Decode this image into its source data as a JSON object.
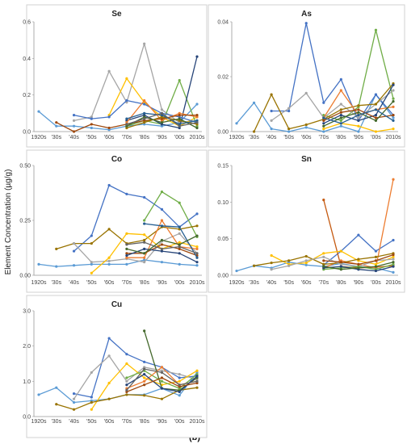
{
  "figure": {
    "ylabel": "Element Concentration (µg/g)",
    "label": "(b)"
  },
  "chart_data": [
    {
      "type": "line",
      "title": "Se",
      "categories": [
        "1920s",
        "'30s",
        "'40s",
        "'50s",
        "'60s",
        "'70s",
        "'80s",
        "'90s",
        "'00s",
        "2010s"
      ],
      "ylim": [
        0,
        0.6
      ],
      "yticks": [
        "0.0",
        "0.2",
        "0.4",
        "0.6"
      ],
      "series": [
        {
          "color": "#5b9bd5",
          "values": [
            0.11,
            0.03,
            0.03,
            0.02,
            0.01,
            0.03,
            0.04,
            0.03,
            0.05,
            0.15
          ]
        },
        {
          "color": "#a5a5a5",
          "values": [
            null,
            null,
            0.06,
            0.08,
            0.33,
            0.16,
            0.48,
            0.12,
            0.05,
            0.06
          ]
        },
        {
          "color": "#ffc000",
          "values": [
            null,
            null,
            null,
            null,
            0.09,
            0.29,
            0.16,
            0.08,
            0.03,
            0.08
          ]
        },
        {
          "color": "#70ad47",
          "values": [
            null,
            null,
            null,
            null,
            null,
            0.03,
            0.06,
            0.04,
            0.28,
            0.03
          ]
        },
        {
          "color": "#264478",
          "values": [
            null,
            null,
            null,
            null,
            null,
            0.06,
            0.09,
            0.04,
            0.02,
            0.41
          ]
        },
        {
          "color": "#4472c4",
          "values": [
            null,
            null,
            0.09,
            0.07,
            0.08,
            0.17,
            0.15,
            0.1,
            0.08,
            0.05
          ]
        },
        {
          "color": "#ed7d31",
          "values": [
            null,
            null,
            null,
            null,
            null,
            0.05,
            0.17,
            0.06,
            0.1,
            0.08
          ]
        },
        {
          "color": "#9e480e",
          "values": [
            null,
            0.05,
            0.0,
            0.04,
            0.02,
            0.04,
            0.06,
            0.07,
            0.09,
            0.09
          ]
        },
        {
          "color": "#997300",
          "values": [
            null,
            null,
            null,
            null,
            null,
            0.02,
            0.05,
            0.08,
            0.06,
            0.04
          ]
        },
        {
          "color": "#43682b",
          "values": [
            null,
            null,
            null,
            null,
            null,
            0.03,
            0.08,
            0.05,
            0.07,
            0.02
          ]
        },
        {
          "color": "#255e91",
          "values": [
            null,
            null,
            null,
            null,
            null,
            0.07,
            0.1,
            0.09,
            0.04,
            0.06
          ]
        },
        {
          "color": "#636363",
          "values": [
            null,
            null,
            null,
            null,
            null,
            0.04,
            0.07,
            0.1,
            0.03,
            0.05
          ]
        }
      ]
    },
    {
      "type": "line",
      "title": "As",
      "categories": [
        "1920s",
        "'30s",
        "'40s",
        "'50s",
        "'60s",
        "'70s",
        "'80s",
        "'90s",
        "'00s",
        "2010s"
      ],
      "ylim": [
        0,
        0.04
      ],
      "yticks": [
        "0.00",
        "0.02",
        "0.04"
      ],
      "series": [
        {
          "color": "#5b9bd5",
          "values": [
            0.003,
            0.0105,
            0.001,
            0.0,
            0.0015,
            0.0,
            0.002,
            0.0,
            0.0135,
            0.005
          ]
        },
        {
          "color": "#4472c4",
          "values": [
            null,
            null,
            0.0075,
            0.0075,
            0.0395,
            0.0105,
            0.019,
            0.004,
            0.0135,
            0.006
          ]
        },
        {
          "color": "#70ad47",
          "values": [
            null,
            null,
            null,
            null,
            null,
            0.006,
            0.004,
            0.009,
            0.037,
            0.012
          ]
        },
        {
          "color": "#a5a5a5",
          "values": [
            null,
            null,
            0.004,
            0.0085,
            0.014,
            0.005,
            0.01,
            0.005,
            0.01,
            0.015
          ]
        },
        {
          "color": "#997300",
          "values": [
            null,
            0.0,
            0.0135,
            0.001,
            0.0025,
            0.0045,
            0.008,
            0.0095,
            0.01,
            0.0175
          ]
        },
        {
          "color": "#ed7d31",
          "values": [
            null,
            null,
            null,
            null,
            null,
            0.005,
            0.015,
            0.006,
            0.008,
            0.009
          ]
        },
        {
          "color": "#ffc000",
          "values": [
            null,
            null,
            null,
            null,
            null,
            0.001,
            0.003,
            0.002,
            0.0,
            0.001
          ]
        },
        {
          "color": "#264478",
          "values": [
            null,
            null,
            null,
            null,
            null,
            0.003,
            0.006,
            0.004,
            0.006,
            0.017
          ]
        },
        {
          "color": "#9e480e",
          "values": [
            null,
            null,
            null,
            null,
            null,
            0.004,
            0.007,
            0.008,
            0.005,
            0.006
          ]
        },
        {
          "color": "#43682b",
          "values": [
            null,
            null,
            null,
            null,
            null,
            0.002,
            0.005,
            0.007,
            0.004,
            0.011
          ]
        },
        {
          "color": "#255e91",
          "values": [
            null,
            null,
            null,
            null,
            null,
            0.005,
            0.003,
            0.006,
            0.008,
            0.004
          ]
        }
      ]
    },
    {
      "type": "line",
      "title": "Co",
      "categories": [
        "1920s",
        "'30s",
        "'40s",
        "'50s",
        "'60s",
        "'70s",
        "'80s",
        "'90s",
        "'00s",
        "2010s"
      ],
      "ylim": [
        0,
        0.5
      ],
      "yticks": [
        "0.00",
        "0.25",
        "0.50"
      ],
      "series": [
        {
          "color": "#5b9bd5",
          "values": [
            0.05,
            0.04,
            0.045,
            0.05,
            0.05,
            0.05,
            0.07,
            0.06,
            0.05,
            0.045
          ]
        },
        {
          "color": "#4472c4",
          "values": [
            null,
            null,
            0.11,
            0.18,
            0.41,
            0.37,
            0.355,
            0.3,
            0.22,
            0.28
          ]
        },
        {
          "color": "#70ad47",
          "values": [
            null,
            null,
            null,
            null,
            null,
            null,
            0.25,
            0.38,
            0.33,
            0.175
          ]
        },
        {
          "color": "#997300",
          "values": [
            null,
            0.12,
            0.145,
            0.145,
            0.21,
            0.145,
            0.16,
            0.22,
            0.21,
            0.225
          ]
        },
        {
          "color": "#a5a5a5",
          "values": [
            null,
            null,
            0.145,
            0.06,
            0.065,
            0.075,
            0.06,
            0.155,
            0.19,
            0.1
          ]
        },
        {
          "color": "#ffc000",
          "values": [
            null,
            null,
            null,
            0.01,
            0.08,
            0.19,
            0.185,
            0.12,
            0.15,
            0.13
          ]
        },
        {
          "color": "#ed7d31",
          "values": [
            null,
            null,
            null,
            null,
            null,
            0.08,
            0.08,
            0.25,
            0.13,
            0.12
          ]
        },
        {
          "color": "#9e480e",
          "values": [
            null,
            null,
            null,
            null,
            null,
            0.1,
            0.1,
            0.14,
            0.12,
            0.09
          ]
        },
        {
          "color": "#264478",
          "values": [
            null,
            null,
            null,
            null,
            null,
            0.09,
            0.12,
            0.11,
            0.1,
            0.06
          ]
        },
        {
          "color": "#255e91",
          "values": [
            null,
            null,
            null,
            null,
            null,
            null,
            0.235,
            0.225,
            0.22,
            0.08
          ]
        },
        {
          "color": "#636363",
          "values": [
            null,
            null,
            null,
            null,
            null,
            0.14,
            0.15,
            0.12,
            0.13,
            0.1
          ]
        },
        {
          "color": "#43682b",
          "values": [
            null,
            null,
            null,
            null,
            null,
            0.12,
            0.1,
            0.16,
            0.14,
            0.18
          ]
        }
      ]
    },
    {
      "type": "line",
      "title": "Sn",
      "categories": [
        "1920s",
        "'30s",
        "'40s",
        "'50s",
        "'60s",
        "'70s",
        "'80s",
        "'90s",
        "'00s",
        "2010s"
      ],
      "ylim": [
        0,
        0.15
      ],
      "yticks": [
        "0.00",
        "0.05",
        "0.10",
        "0.15"
      ],
      "series": [
        {
          "color": "#5b9bd5",
          "values": [
            0.006,
            0.013,
            0.01,
            0.018,
            0.014,
            0.012,
            0.016,
            0.012,
            0.01,
            0.004
          ]
        },
        {
          "color": "#4472c4",
          "values": [
            null,
            null,
            null,
            null,
            null,
            0.014,
            0.033,
            0.055,
            0.033,
            0.048
          ]
        },
        {
          "color": "#c55a11",
          "values": [
            null,
            null,
            null,
            null,
            null,
            0.103,
            0.012,
            0.01,
            0.011,
            0.013
          ]
        },
        {
          "color": "#ed7d31",
          "values": [
            null,
            null,
            null,
            null,
            null,
            0.01,
            0.02,
            0.015,
            0.01,
            0.131
          ]
        },
        {
          "color": "#ffc000",
          "values": [
            null,
            null,
            0.027,
            0.015,
            0.017,
            0.03,
            0.033,
            0.02,
            0.015,
            0.025
          ]
        },
        {
          "color": "#997300",
          "values": [
            null,
            0.013,
            0.017,
            0.02,
            0.026,
            0.015,
            0.017,
            0.022,
            0.025,
            0.03
          ]
        },
        {
          "color": "#a5a5a5",
          "values": [
            null,
            null,
            0.008,
            0.013,
            0.02,
            0.025,
            0.015,
            0.012,
            0.02,
            0.022
          ]
        },
        {
          "color": "#70ad47",
          "values": [
            null,
            null,
            null,
            null,
            null,
            0.008,
            0.01,
            0.012,
            0.008,
            0.015
          ]
        },
        {
          "color": "#264478",
          "values": [
            null,
            null,
            null,
            null,
            null,
            0.01,
            0.012,
            0.008,
            0.006,
            0.012
          ]
        },
        {
          "color": "#43682b",
          "values": [
            null,
            null,
            null,
            null,
            null,
            0.012,
            0.008,
            0.01,
            0.012,
            0.018
          ]
        },
        {
          "color": "#9e480e",
          "values": [
            null,
            null,
            null,
            null,
            null,
            0.02,
            0.018,
            0.015,
            0.02,
            0.028
          ]
        }
      ]
    },
    {
      "type": "line",
      "title": "Cu",
      "categories": [
        "1920s",
        "'30s",
        "'40s",
        "'50s",
        "'60s",
        "'70s",
        "'80s",
        "'90s",
        "'00s",
        "2010s"
      ],
      "ylim": [
        0,
        3.0
      ],
      "yticks": [
        "0.0",
        "1.0",
        "2.0",
        "3.0"
      ],
      "series": [
        {
          "color": "#5b9bd5",
          "values": [
            0.62,
            0.82,
            0.4,
            0.45,
            0.5,
            0.62,
            0.62,
            0.8,
            0.6,
            1.25
          ]
        },
        {
          "color": "#4472c4",
          "values": [
            null,
            null,
            0.65,
            0.55,
            2.22,
            1.77,
            1.55,
            1.4,
            1.1,
            1.15
          ]
        },
        {
          "color": "#a5a5a5",
          "values": [
            null,
            null,
            0.5,
            1.25,
            1.72,
            1.0,
            1.4,
            1.3,
            1.2,
            1.05
          ]
        },
        {
          "color": "#ffc000",
          "values": [
            null,
            null,
            null,
            0.2,
            0.95,
            1.5,
            1.1,
            0.9,
            1.0,
            1.3
          ]
        },
        {
          "color": "#997300",
          "values": [
            null,
            0.35,
            0.2,
            0.4,
            0.5,
            0.62,
            0.6,
            0.5,
            0.75,
            0.82
          ]
        },
        {
          "color": "#43682b",
          "values": [
            null,
            null,
            null,
            null,
            null,
            null,
            2.43,
            0.8,
            0.75,
            1.1
          ]
        },
        {
          "color": "#70ad47",
          "values": [
            null,
            null,
            null,
            null,
            null,
            1.1,
            1.3,
            1.0,
            0.8,
            1.2
          ]
        },
        {
          "color": "#ed7d31",
          "values": [
            null,
            null,
            null,
            null,
            null,
            0.8,
            1.0,
            1.4,
            0.9,
            1.0
          ]
        },
        {
          "color": "#264478",
          "values": [
            null,
            null,
            null,
            null,
            null,
            0.9,
            1.2,
            0.8,
            0.7,
            1.15
          ]
        },
        {
          "color": "#9e480e",
          "values": [
            null,
            null,
            null,
            null,
            null,
            0.7,
            0.9,
            1.1,
            0.85,
            0.95
          ]
        },
        {
          "color": "#636363",
          "values": [
            null,
            null,
            null,
            null,
            null,
            0.75,
            1.35,
            1.25,
            0.9,
            1.0
          ]
        }
      ]
    }
  ]
}
